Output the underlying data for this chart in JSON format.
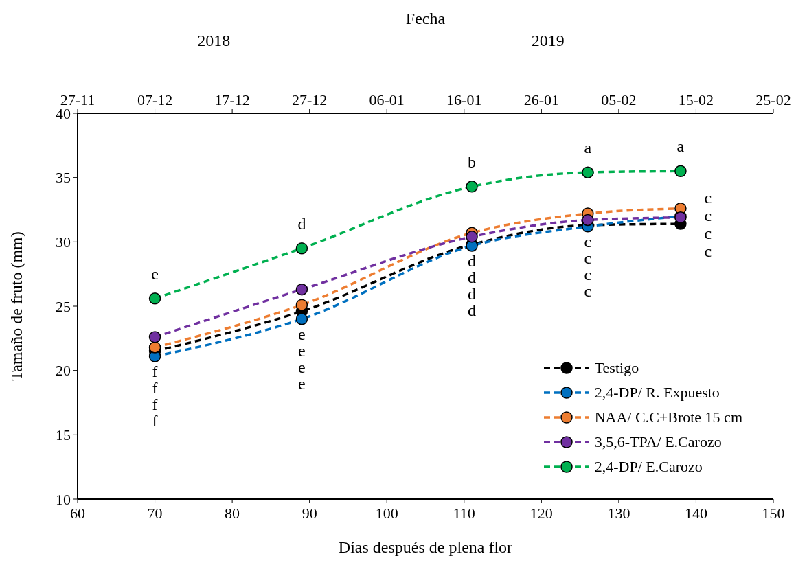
{
  "chart_data": {
    "type": "line",
    "x": [
      70,
      89,
      111,
      126,
      138
    ],
    "series": [
      {
        "name": "Testigo",
        "color": "#000000",
        "values": [
          21.5,
          24.6,
          29.8,
          31.3,
          31.4
        ],
        "value_labels": [
          "f",
          "e",
          "d",
          "c",
          "c"
        ]
      },
      {
        "name": "2,4-DP/ R. Expuesto",
        "color": "#0070c0",
        "values": [
          21.1,
          24.0,
          29.7,
          31.2,
          32.0
        ],
        "value_labels": [
          "f",
          "e",
          "d",
          "c",
          "c"
        ]
      },
      {
        "name": "NAA/ C.C+Brote 15 cm",
        "color": "#ed7d31",
        "values": [
          21.8,
          25.1,
          30.7,
          32.2,
          32.6
        ],
        "value_labels": [
          "f",
          "e",
          "d",
          "c",
          "c"
        ]
      },
      {
        "name": "3,5,6-TPA/ E.Carozo",
        "color": "#7030a0",
        "values": [
          22.6,
          26.3,
          30.4,
          31.7,
          31.9
        ],
        "value_labels": [
          "f",
          "e",
          "d",
          "c",
          "c"
        ]
      },
      {
        "name": "2,4-DP/ E.Carozo",
        "color": "#00b050",
        "values": [
          25.6,
          29.5,
          34.3,
          35.4,
          35.5
        ],
        "value_labels": [
          "e",
          "d",
          "b",
          "a",
          "a"
        ]
      }
    ],
    "xlabel": "Días después de plena flor",
    "ylabel": "Tamaño de fruto (mm)",
    "x2label": "Fecha",
    "xlim": [
      60,
      150
    ],
    "xticks": [
      60,
      70,
      80,
      90,
      100,
      110,
      120,
      130,
      140,
      150
    ],
    "ylim": [
      10,
      40
    ],
    "yticks": [
      10,
      15,
      20,
      25,
      30,
      35,
      40
    ],
    "x2lim": [
      "2018-11-27",
      "2019-02-25"
    ],
    "x2ticks": [
      {
        "value": "2018-11-27",
        "label": "27-11"
      },
      {
        "value": "2018-12-07",
        "label": "07-12"
      },
      {
        "value": "2018-12-17",
        "label": "17-12"
      },
      {
        "value": "2018-12-27",
        "label": "27-12"
      },
      {
        "value": "2019-01-06",
        "label": "06-01"
      },
      {
        "value": "2019-01-16",
        "label": "16-01"
      },
      {
        "value": "2019-01-26",
        "label": "26-01"
      },
      {
        "value": "2019-02-05",
        "label": "05-02"
      },
      {
        "value": "2019-02-15",
        "label": "15-02"
      },
      {
        "value": "2019-02-25",
        "label": "25-02"
      }
    ],
    "legend": "bottom right",
    "grid": false,
    "marker": "circle",
    "line_style": "dashed",
    "annotations": [
      "2018",
      "2019"
    ]
  }
}
